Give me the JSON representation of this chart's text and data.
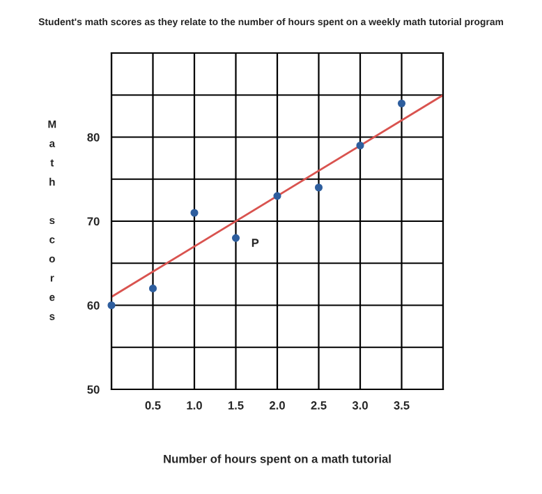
{
  "chart_data": {
    "type": "scatter",
    "title": "Student's math scores as they relate to the number of hours spent on a weekly math tutorial program",
    "xlabel": "Number of hours spent on a math tutorial",
    "ylabel": "Math scores",
    "x": [
      0,
      0.5,
      1,
      1.5,
      2,
      2.5,
      3,
      3.5
    ],
    "series": [
      {
        "marker": "circle",
        "color": "#2e5e9e",
        "values": [
          60,
          62,
          71,
          68,
          73,
          74,
          79,
          84
        ]
      },
      {
        "type": "line",
        "marker": "none",
        "color": "#d9534f",
        "x": [
          0,
          4
        ],
        "values": [
          61,
          85
        ]
      }
    ],
    "xlim": [
      0,
      4
    ],
    "xticks": [
      {
        "value": 0,
        "label": null
      },
      0.5,
      {
        "value": 1,
        "label": "1.0"
      },
      1.5,
      {
        "value": 2,
        "label": "2.0"
      },
      2.5,
      {
        "value": 3,
        "label": "3.0"
      },
      3.5,
      {
        "value": 4,
        "label": null
      }
    ],
    "ylim": [
      50,
      90
    ],
    "yticks": [
      50,
      {
        "value": 55,
        "label": null
      },
      60,
      {
        "value": 65,
        "label": null
      },
      70,
      {
        "value": 75,
        "label": null
      },
      80,
      {
        "value": 85,
        "label": null
      },
      {
        "value": 90,
        "label": null
      }
    ],
    "annotations": [
      {
        "text": "P",
        "x": 1.5,
        "y": 68
      }
    ],
    "grid": true
  }
}
